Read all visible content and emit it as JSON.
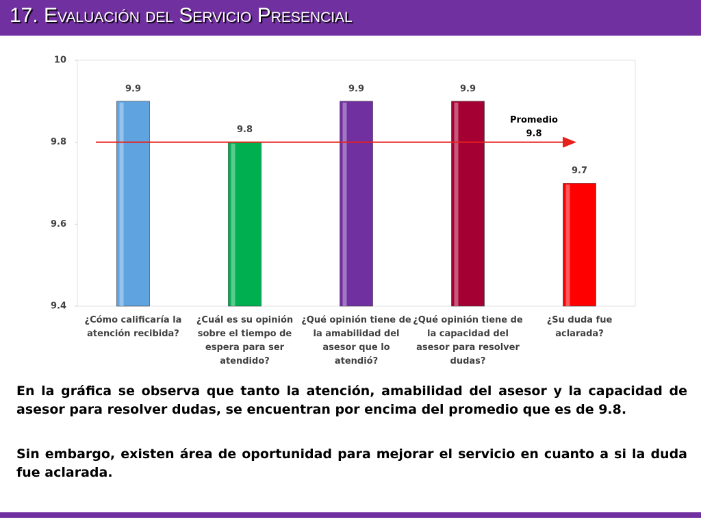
{
  "header": {
    "title": "17. Evaluación del Servicio Presencial"
  },
  "chart_data": {
    "type": "bar",
    "categories": [
      "¿Cómo calificaría la atención recibida?",
      "¿Cuál es su opinión sobre el tiempo de espera para ser atendido?",
      "¿Qué opinión tiene de la amabilidad del asesor que lo atendió?",
      "¿Qué opinión tiene de la capacidad del asesor para resolver dudas?",
      "¿Su duda fue aclarada?"
    ],
    "values": [
      9.9,
      9.8,
      9.9,
      9.9,
      9.7
    ],
    "colors": [
      "#5fa3e0",
      "#00b050",
      "#7030a0",
      "#a50034",
      "#ff0000"
    ],
    "ylim": [
      9.4,
      10
    ],
    "yticks": [
      9.4,
      9.6,
      9.8,
      10
    ],
    "average": {
      "label": "Promedio",
      "value": 9.8,
      "color": "#e8201c"
    }
  },
  "text": {
    "paragraphs": [
      "En la gráfica se observa que tanto la atención, amabilidad del asesor y la capacidad de asesor para resolver dudas, se encuentran por encima del promedio que es de 9.8.",
      "Sin embargo, existen área de oportunidad para mejorar el servicio en cuanto a si la duda fue aclarada."
    ]
  }
}
